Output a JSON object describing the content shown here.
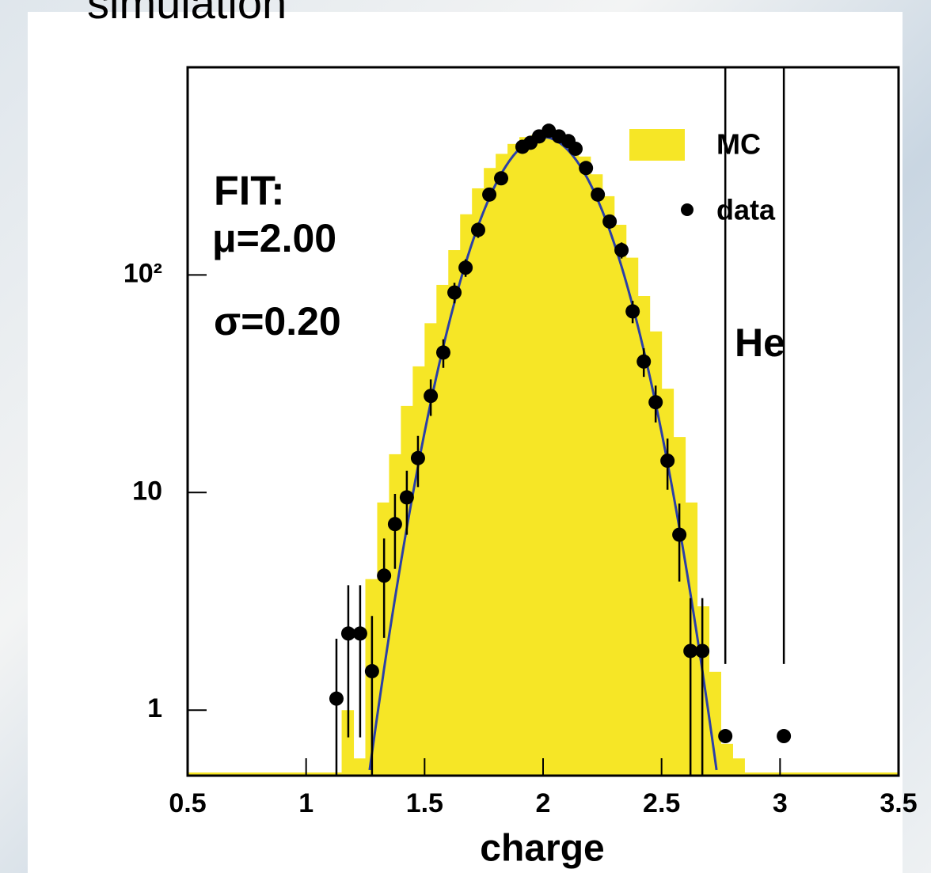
{
  "heading": "simulation",
  "chart_data": {
    "type": "histogram",
    "xlabel": "charge",
    "annotations": [
      "FIT:",
      "μ=2.00",
      "σ=0.20",
      "He"
    ],
    "xlim": [
      0.5,
      3.5
    ],
    "xticks": [
      0.5,
      1,
      1.5,
      2,
      2.5,
      3,
      3.5
    ],
    "ylim": [
      0.5,
      900
    ],
    "ylog": true,
    "yticks": [
      1,
      10,
      {
        "value": 100,
        "label": "10²"
      }
    ],
    "histogram": {
      "name": "MC",
      "color": "#f6e626",
      "bins": [
        1.15,
        1.2,
        1.25,
        1.3,
        1.35,
        1.4,
        1.45,
        1.5,
        1.55,
        1.6,
        1.65,
        1.7,
        1.75,
        1.8,
        1.85,
        1.9,
        1.95,
        2.0,
        2.05,
        2.1,
        2.15,
        2.2,
        2.25,
        2.3,
        2.35,
        2.4,
        2.45,
        2.5,
        2.55,
        2.6,
        2.65,
        2.7,
        2.75,
        2.8,
        2.85
      ],
      "values": [
        1,
        0.6,
        4,
        9,
        15,
        25,
        38,
        60,
        90,
        130,
        190,
        250,
        310,
        360,
        400,
        430,
        440,
        440,
        420,
        390,
        350,
        290,
        230,
        170,
        120,
        80,
        55,
        30,
        18,
        9,
        3,
        1.5,
        0.7,
        0.6
      ]
    },
    "points": {
      "name": "data",
      "color": "#000000",
      "x": [
        1.128,
        1.178,
        1.228,
        1.278,
        1.329,
        1.375,
        1.425,
        1.472,
        1.526,
        1.579,
        1.626,
        1.673,
        1.726,
        1.773,
        1.823,
        1.913,
        1.947,
        1.983,
        2.024,
        2.067,
        2.107,
        2.137,
        2.181,
        2.231,
        2.281,
        2.331,
        2.378,
        2.425,
        2.475,
        2.525,
        2.575,
        2.622,
        2.672,
        2.769,
        3.016
      ],
      "values": [
        1.13,
        2.25,
        2.25,
        1.51,
        4.15,
        7.16,
        9.5,
        14.4,
        27.8,
        44,
        83,
        108,
        161,
        234,
        278,
        388,
        405,
        433,
        460,
        433,
        412,
        380,
        310,
        234,
        176,
        130,
        68,
        40,
        26,
        14,
        6.4,
        1.87,
        1.87,
        0.76,
        0.76
      ],
      "errors": [
        1.0,
        1.5,
        1.5,
        1.2,
        2,
        2.7,
        3.1,
        3.8,
        5.3,
        6.6,
        9,
        10,
        13,
        15,
        17,
        20,
        20,
        21,
        21,
        21,
        20,
        19,
        18,
        15,
        13,
        11,
        8,
        6,
        5,
        3.7,
        2.5,
        1.4,
        1.4,
        0.87,
        0.87
      ]
    },
    "fit": {
      "mu": 2.0,
      "sigma": 0.2,
      "amplitude": 430,
      "color": "#2a3fa8"
    }
  }
}
